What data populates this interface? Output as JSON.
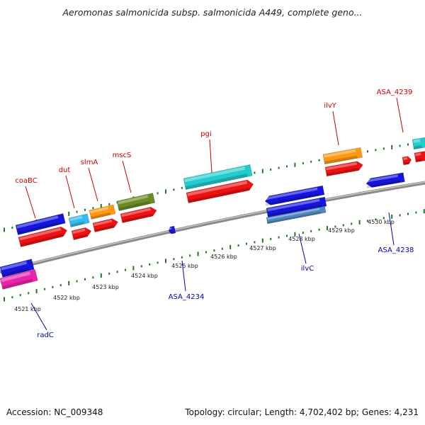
{
  "title": "Aeromonas salmonicida subsp. salmonicida A449, complete geno...",
  "footer": {
    "accession": "Accession: NC_009348",
    "topology": "Topology: circular; Length: 4,702,402 bp; Genes: 4,231"
  },
  "scale_labels": [
    "4521 kbp",
    "4522 kbp",
    "4523 kbp",
    "4524 kbp",
    "4525 kbp",
    "4526 kbp",
    "4527 kbp",
    "4528 kbp",
    "4529 kbp",
    "4530 kbp"
  ],
  "gene_labels_top": [
    "coaBC",
    "dut",
    "slmA",
    "mscS",
    "pgi",
    "ilvY",
    "ASA_4239"
  ],
  "gene_labels_bottom": [
    "radC",
    "ASA_4234",
    "ilvC",
    "ASA_4238"
  ],
  "colors": {
    "top_label": "#cc0000",
    "bottom_label": "#0000bb",
    "backbone": "#8a8a8a",
    "tick": "#1f7a1f",
    "blue": "#1515dd",
    "red": "#ee1111",
    "cyan": "#22cccc",
    "orange": "#ff9910",
    "olive": "#6a8c22",
    "magenta": "#ee22aa",
    "lightcyan": "#33bbee",
    "steel": "#4f86bf"
  }
}
